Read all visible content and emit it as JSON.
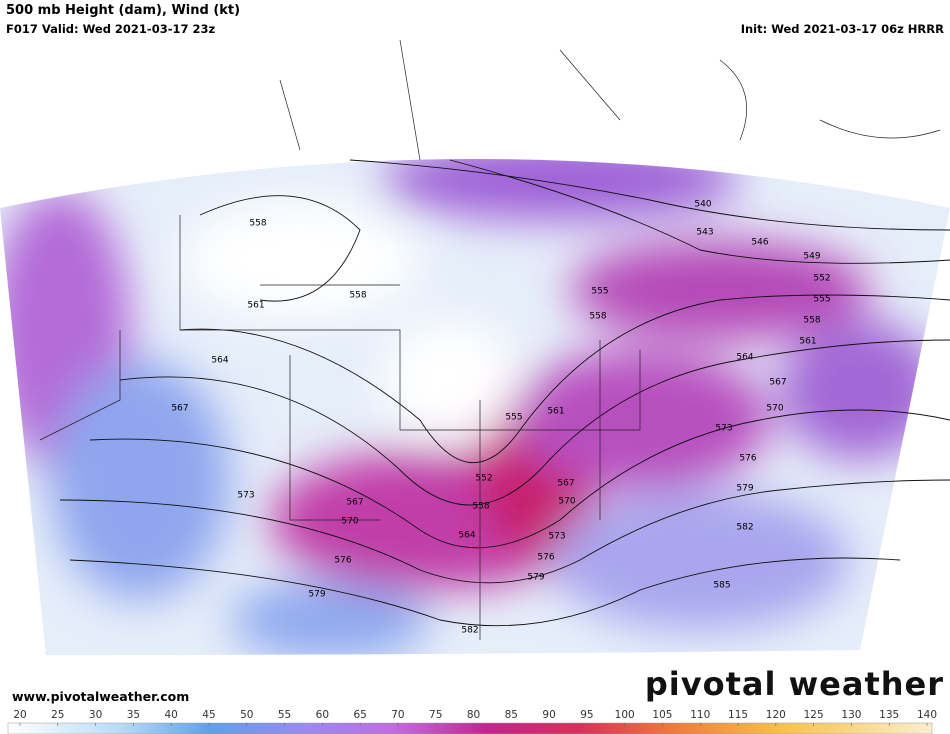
{
  "header": {
    "title": "500 mb Height (dam), Wind (kt)",
    "valid": "F017 Valid: Wed 2021-03-17 23z",
    "init": "Init: Wed 2021-03-17 06z HRRR"
  },
  "contour_labels": [
    558,
    558,
    561,
    564,
    567,
    573,
    576,
    579,
    582,
    585,
    582,
    579,
    576,
    573,
    570,
    567,
    564,
    561,
    558,
    555,
    552,
    549,
    546,
    543,
    540,
    555,
    558,
    555,
    561,
    552,
    558,
    564,
    567,
    570,
    573,
    576,
    579,
    567,
    570
  ],
  "footer": {
    "url": "www.pivotalweather.com",
    "logo": "pivotal weather"
  },
  "colorbar": {
    "ticks": [
      20,
      25,
      30,
      35,
      40,
      45,
      50,
      55,
      60,
      65,
      70,
      75,
      80,
      85,
      90,
      95,
      100,
      105,
      110,
      115,
      120,
      125,
      130,
      135,
      140
    ]
  }
}
